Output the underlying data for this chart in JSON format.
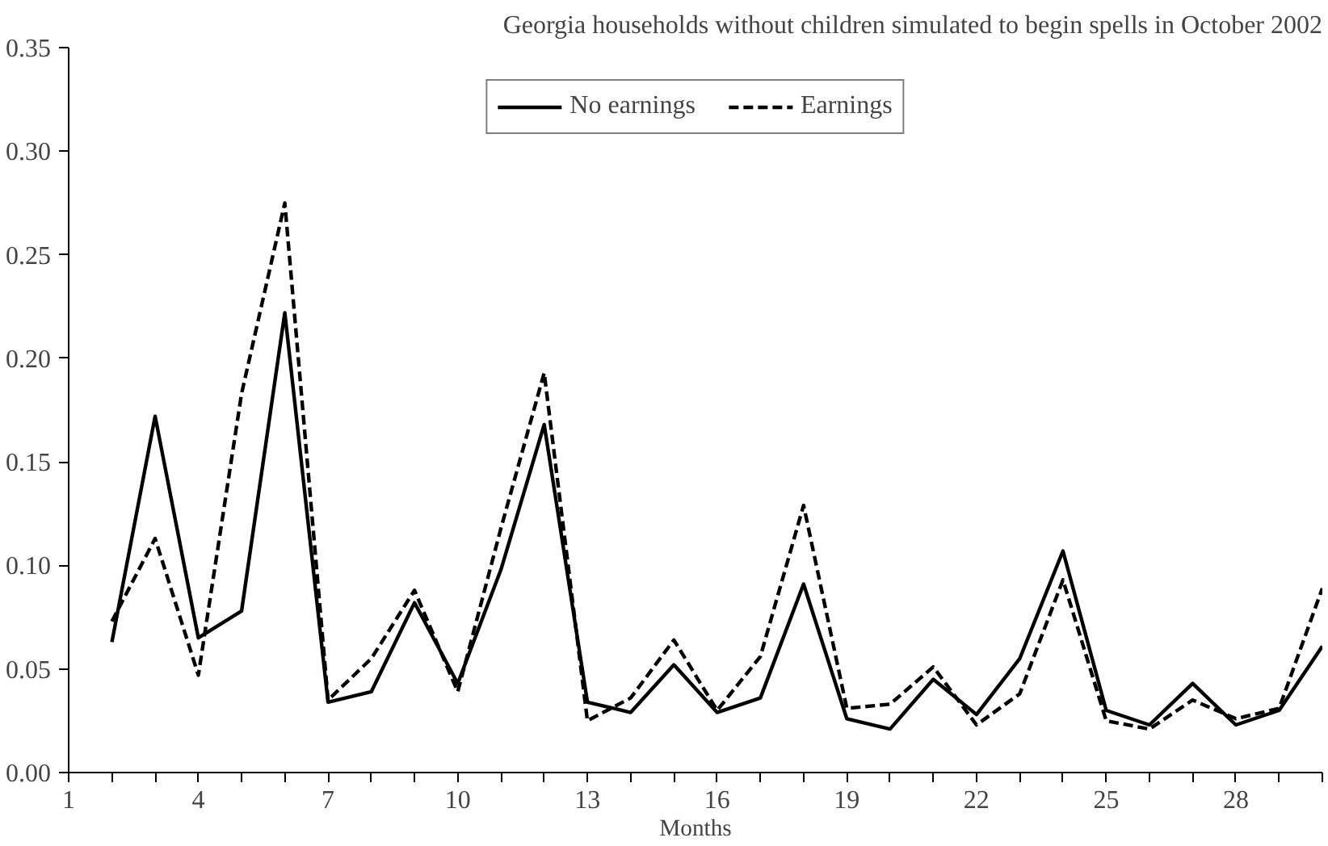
{
  "chart_data": {
    "type": "line",
    "title": "Georgia households without children simulated to begin spells in October 2002",
    "xlabel": "Months",
    "x": [
      2,
      3,
      4,
      5,
      6,
      7,
      8,
      9,
      10,
      11,
      12,
      13,
      14,
      15,
      16,
      17,
      18,
      19,
      20,
      21,
      22,
      23,
      24,
      25,
      26,
      27,
      28,
      29,
      30
    ],
    "series": [
      {
        "name": "No earnings",
        "color": "#000000",
        "line_style": "solid",
        "values": [
          0.063,
          0.172,
          0.065,
          0.078,
          0.222,
          0.034,
          0.039,
          0.082,
          0.043,
          0.098,
          0.168,
          0.034,
          0.029,
          0.052,
          0.029,
          0.036,
          0.091,
          0.026,
          0.021,
          0.045,
          0.028,
          0.055,
          0.107,
          0.03,
          0.023,
          0.043,
          0.023,
          0.03,
          0.061
        ]
      },
      {
        "name": "Earnings",
        "color": "#000000",
        "line_style": "dashed",
        "values": [
          0.073,
          0.113,
          0.047,
          0.183,
          0.275,
          0.035,
          0.055,
          0.088,
          0.039,
          0.118,
          0.193,
          0.025,
          0.036,
          0.064,
          0.03,
          0.056,
          0.129,
          0.031,
          0.033,
          0.051,
          0.023,
          0.038,
          0.093,
          0.025,
          0.021,
          0.035,
          0.026,
          0.031,
          0.089
        ]
      }
    ],
    "xlim": [
      1,
      30
    ],
    "xticks": [
      1,
      {
        "value": 2,
        "label": null
      },
      {
        "value": 3,
        "label": null
      },
      4,
      {
        "value": 5,
        "label": null
      },
      {
        "value": 6,
        "label": null
      },
      7,
      {
        "value": 8,
        "label": null
      },
      {
        "value": 9,
        "label": null
      },
      10,
      {
        "value": 11,
        "label": null
      },
      {
        "value": 12,
        "label": null
      },
      13,
      {
        "value": 14,
        "label": null
      },
      {
        "value": 15,
        "label": null
      },
      16,
      {
        "value": 17,
        "label": null
      },
      {
        "value": 18,
        "label": null
      },
      19,
      {
        "value": 20,
        "label": null
      },
      {
        "value": 21,
        "label": null
      },
      22,
      {
        "value": 23,
        "label": null
      },
      {
        "value": 24,
        "label": null
      },
      25,
      {
        "value": 26,
        "label": null
      },
      {
        "value": 27,
        "label": null
      },
      28,
      {
        "value": 29,
        "label": null
      },
      {
        "value": 30,
        "label": null
      }
    ],
    "ylim": [
      0,
      0.35
    ],
    "yticks": [
      {
        "value": 0,
        "label": "0.00"
      },
      {
        "value": 0.05,
        "label": "0.05"
      },
      {
        "value": 0.1,
        "label": "0.10"
      },
      {
        "value": 0.15,
        "label": "0.15"
      },
      {
        "value": 0.2,
        "label": "0.20"
      },
      {
        "value": 0.25,
        "label": "0.25"
      },
      {
        "value": 0.3,
        "label": "0.30"
      },
      {
        "value": 0.35,
        "label": "0.35"
      }
    ],
    "grid": false,
    "legend": "top",
    "marker": "none"
  }
}
